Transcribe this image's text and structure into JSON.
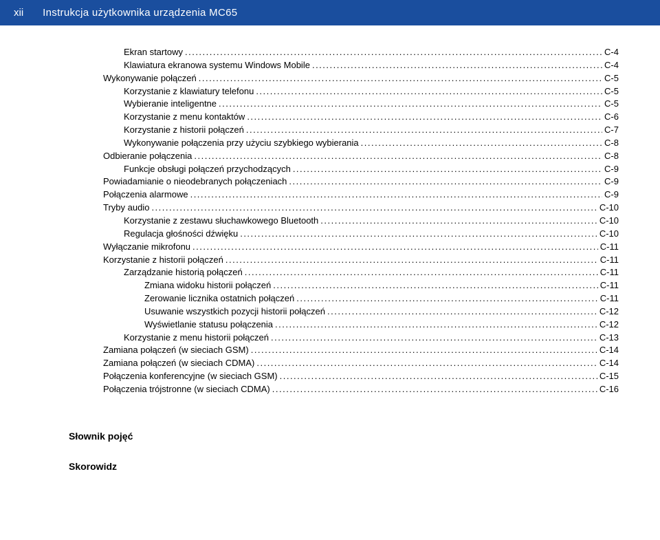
{
  "header": {
    "page_number": "xii",
    "doc_title": "Instrukcja użytkownika urządzenia MC65"
  },
  "toc": {
    "entries": [
      {
        "indent": 3,
        "title": "Ekran startowy",
        "page": "C-4"
      },
      {
        "indent": 3,
        "title": "Klawiatura ekranowa systemu Windows Mobile",
        "page": "C-4"
      },
      {
        "indent": 2,
        "title": "Wykonywanie połączeń",
        "page": "C-5"
      },
      {
        "indent": 3,
        "title": "Korzystanie z klawiatury telefonu",
        "page": "C-5"
      },
      {
        "indent": 3,
        "title": "Wybieranie inteligentne",
        "page": "C-5"
      },
      {
        "indent": 3,
        "title": "Korzystanie z menu kontaktów",
        "page": "C-6"
      },
      {
        "indent": 3,
        "title": "Korzystanie z historii połączeń",
        "page": "C-7"
      },
      {
        "indent": 3,
        "title": "Wykonywanie połączenia przy użyciu szybkiego wybierania",
        "page": "C-8"
      },
      {
        "indent": 2,
        "title": "Odbieranie połączenia",
        "page": "C-8"
      },
      {
        "indent": 3,
        "title": "Funkcje obsługi połączeń przychodzących",
        "page": "C-9"
      },
      {
        "indent": 2,
        "title": "Powiadamianie o nieodebranych połączeniach",
        "page": "C-9"
      },
      {
        "indent": 2,
        "title": "Połączenia alarmowe",
        "page": "C-9"
      },
      {
        "indent": 2,
        "title": "Tryby audio",
        "page": "C-10"
      },
      {
        "indent": 3,
        "title": "Korzystanie z zestawu słuchawkowego Bluetooth",
        "page": "C-10"
      },
      {
        "indent": 3,
        "title": "Regulacja głośności dźwięku",
        "page": "C-10"
      },
      {
        "indent": 2,
        "title": "Wyłączanie mikrofonu",
        "page": "C-11"
      },
      {
        "indent": 2,
        "title": "Korzystanie z historii połączeń",
        "page": "C-11"
      },
      {
        "indent": 3,
        "title": "Zarządzanie historią połączeń",
        "page": "C-11"
      },
      {
        "indent": 4,
        "title": "Zmiana widoku historii połączeń",
        "page": "C-11"
      },
      {
        "indent": 4,
        "title": "Zerowanie licznika ostatnich połączeń",
        "page": "C-11"
      },
      {
        "indent": 4,
        "title": "Usuwanie wszystkich pozycji historii połączeń",
        "page": "C-12"
      },
      {
        "indent": 4,
        "title": "Wyświetlanie statusu połączenia",
        "page": "C-12"
      },
      {
        "indent": 3,
        "title": "Korzystanie z menu historii połączeń",
        "page": "C-13"
      },
      {
        "indent": 2,
        "title": "Zamiana połączeń (w sieciach GSM)",
        "page": "C-14"
      },
      {
        "indent": 2,
        "title": "Zamiana połączeń (w sieciach CDMA)",
        "page": "C-14"
      },
      {
        "indent": 2,
        "title": "Połączenia konferencyjne (w sieciach GSM)",
        "page": "C-15"
      },
      {
        "indent": 2,
        "title": "Połączenia trójstronne (w sieciach CDMA)",
        "page": "C-16"
      }
    ]
  },
  "sections": {
    "glossary": "Słownik pojęć",
    "index": "Skorowidz"
  },
  "style": {
    "header_bg": "#1a4e9e",
    "header_fg": "#ffffff",
    "body_bg": "#ffffff",
    "text_color": "#000000",
    "font_family": "Arial, Helvetica, sans-serif",
    "toc_font_size": 13,
    "header_font_size": 15,
    "section_font_size": 14,
    "line_height": 1.45
  }
}
